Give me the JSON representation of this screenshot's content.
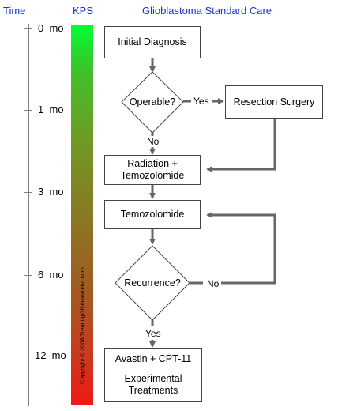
{
  "headers": {
    "time": "Time",
    "kps": "KPS",
    "title": "Glioblastoma Standard Care"
  },
  "colors": {
    "header_blue": "#1a33cc",
    "arrow_gray": "#666666",
    "kps_top": "#00ff33",
    "kps_bottom": "#ee1a16"
  },
  "timeline": [
    "0  mo",
    "1  mo",
    "3  mo",
    "6  mo",
    "12  mo"
  ],
  "kps_bar": {
    "copyright": "Copyright © 2008 TreatingGlioblastoma.com"
  },
  "flow": {
    "initial_diagnosis": "Initial Diagnosis",
    "operable_question": "Operable?",
    "resection_surgery": "Resection Surgery",
    "radiation_line1": "Radiation +",
    "radiation_line2": "Temozolomide",
    "temozolomide": "Temozolomide",
    "recurrence_question": "Recurrence?",
    "avastin_line1": "Avastin + CPT-11",
    "avastin_line2": "Experimental",
    "avastin_line3": "Treatments"
  },
  "edge_labels": {
    "operable_yes": "Yes",
    "operable_no": "No",
    "recurrence_no": "No",
    "recurrence_yes": "Yes"
  }
}
